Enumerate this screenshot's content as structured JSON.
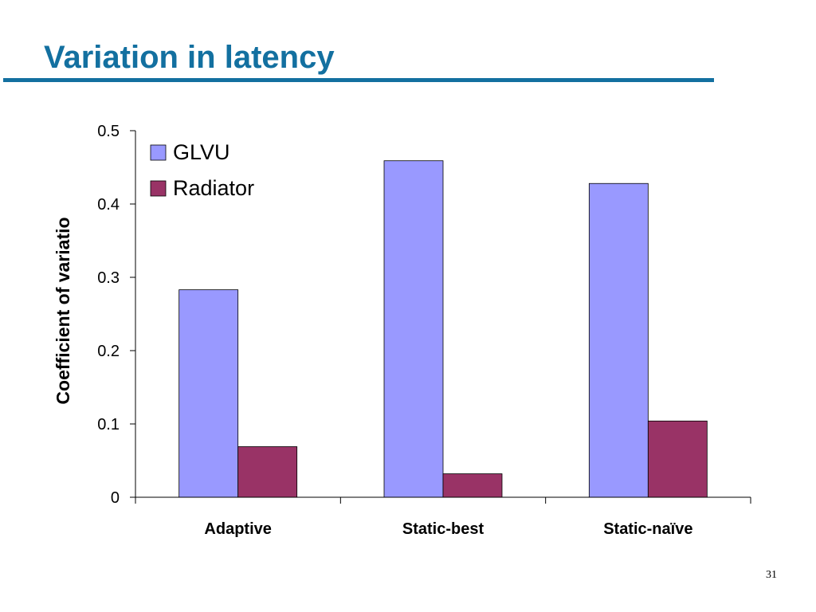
{
  "slide": {
    "title": "Variation in latency",
    "page_number": "31"
  },
  "colors": {
    "title": "#1370a0",
    "glvu": "#9999ff",
    "radiator": "#993366",
    "axis": "#000000"
  },
  "chart_data": {
    "type": "bar",
    "title": "",
    "xlabel": "",
    "ylabel": "Coefficient of variatio",
    "categories": [
      "Adaptive",
      "Static-best",
      "Static-naïve"
    ],
    "series": [
      {
        "name": "GLVU",
        "values": [
          0.283,
          0.459,
          0.428
        ]
      },
      {
        "name": "Radiator",
        "values": [
          0.069,
          0.032,
          0.104
        ]
      }
    ],
    "ylim": [
      0,
      0.5
    ],
    "yticks": [
      0,
      0.1,
      0.2,
      0.3,
      0.4,
      0.5
    ],
    "ytick_labels": [
      "0",
      "0.1",
      "0.2",
      "0.3",
      "0.4",
      "0.5"
    ],
    "grid": false,
    "legend_position": "top-left"
  }
}
